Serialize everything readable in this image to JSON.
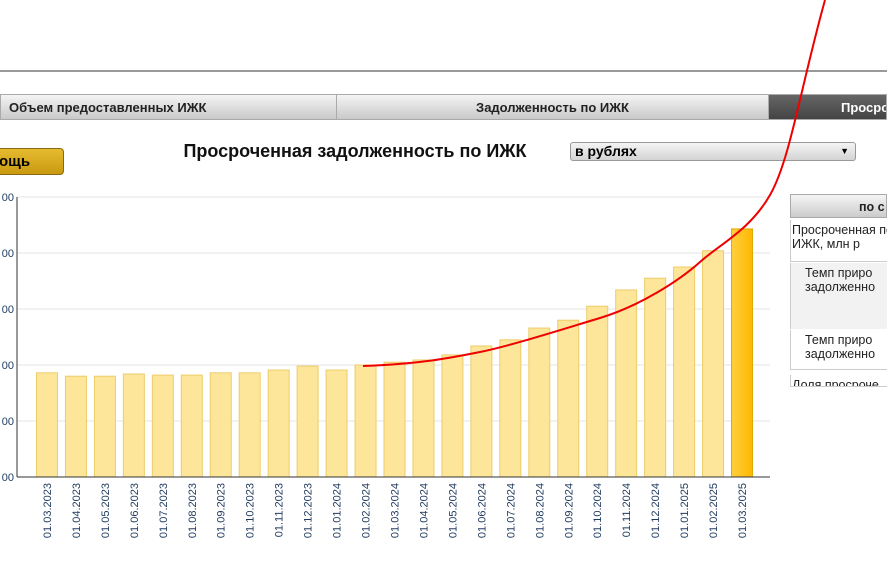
{
  "ui": {
    "tabs": [
      "Объем предоставленных ИЖК",
      "Задолженность по ИЖК",
      "Просро"
    ],
    "button": "ощь",
    "dropdown": "в рублях",
    "side_table": {
      "header": "по с",
      "rows": [
        "Просроченная по ИЖК, млн р",
        "Темп приро задолженно",
        "Темп приро задолженно",
        "Доля просроче задолженност"
      ]
    }
  },
  "chart_data": {
    "type": "bar",
    "title": "Просроченная задолженность по ИЖК",
    "categories": [
      "01.03.2023",
      "01.04.2023",
      "01.05.2023",
      "01.06.2023",
      "01.07.2023",
      "01.08.2023",
      "01.09.2023",
      "01.10.2023",
      "01.11.2023",
      "01.12.2023",
      "01.01.2024",
      "01.02.2024",
      "01.03.2024",
      "01.04.2024",
      "01.05.2024",
      "01.06.2024",
      "01.07.2024",
      "01.08.2024",
      "01.09.2024",
      "01.10.2024",
      "01.11.2024",
      "01.12.2024",
      "01.01.2025",
      "01.02.2025",
      "01.03.2025"
    ],
    "values": [
      186,
      180,
      180,
      184,
      182,
      182,
      186,
      186,
      191,
      198,
      191,
      200,
      205,
      209,
      218,
      234,
      245,
      266,
      280,
      305,
      334,
      355,
      375,
      404,
      443
    ],
    "color": "#fde59a",
    "highlight_color": "#ffc000",
    "ylim": [
      0,
      500
    ],
    "yticks": [
      {
        "value": 0,
        "label": "00"
      },
      {
        "value": 100,
        "label": "00"
      },
      {
        "value": 200,
        "label": "00"
      },
      {
        "value": 300,
        "label": "00"
      },
      {
        "value": 400,
        "label": "00"
      },
      {
        "value": 500,
        "label": "00"
      }
    ],
    "grid": true
  }
}
